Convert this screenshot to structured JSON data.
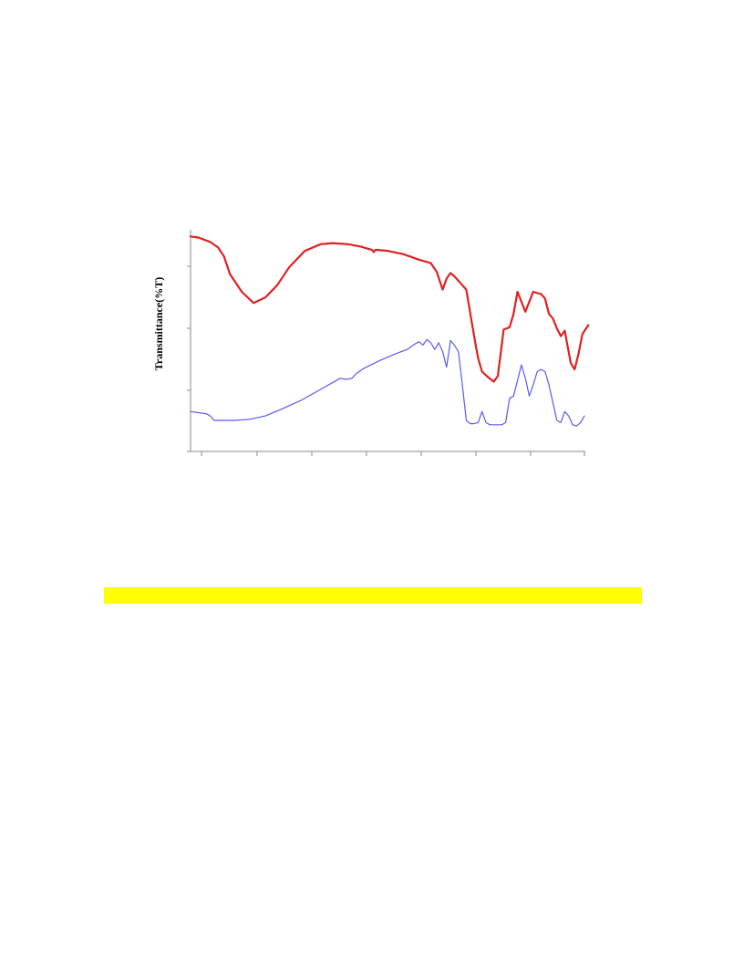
{
  "chart_data": {
    "type": "line",
    "title": "",
    "xlabel": "",
    "ylabel": "Transmittance(%T)",
    "xlim": [
      0,
      100
    ],
    "ylim": [
      0,
      100
    ],
    "grid": false,
    "legend": "none",
    "series": [
      {
        "color": "#e02020",
        "x": [
          0,
          2,
          5,
          7,
          8.5,
          10,
          13,
          16,
          19,
          22,
          25,
          29,
          33,
          36,
          40,
          43,
          46,
          46.5,
          47,
          50,
          54,
          58,
          61,
          62.5,
          64,
          65,
          66,
          67,
          68.5,
          70,
          72,
          73,
          74,
          75.5,
          77,
          78,
          79.5,
          81,
          82,
          83,
          85,
          87,
          89,
          90,
          91,
          92,
          93,
          94,
          95,
          96.5,
          97.5,
          98.5,
          99.5,
          101
        ],
        "y": [
          97,
          96.5,
          94.5,
          92,
          88,
          80,
          72,
          67,
          69.5,
          75,
          83,
          90.5,
          93.5,
          94,
          93.5,
          92.5,
          91,
          90,
          91,
          90.5,
          89,
          86.5,
          85,
          81,
          73,
          78,
          80.5,
          79,
          76,
          73,
          52,
          42,
          36,
          33.5,
          31.5,
          34,
          55,
          56,
          62,
          72,
          63,
          72,
          71,
          69,
          62,
          60,
          55.5,
          52,
          54.5,
          40,
          37,
          44,
          53,
          57
        ]
      },
      {
        "color": "#5a5af0",
        "x": [
          0,
          2,
          4,
          5,
          6,
          8,
          11,
          15,
          19,
          23,
          28,
          33,
          38,
          39.5,
          41,
          42,
          44,
          48,
          52,
          55,
          57,
          58,
          59,
          60,
          61,
          62,
          63,
          64,
          65,
          66,
          67,
          68,
          69,
          70,
          71,
          72,
          73,
          74,
          75,
          76,
          77,
          78,
          79,
          80,
          81,
          82,
          83,
          84,
          85,
          86,
          87,
          88,
          89,
          90,
          91,
          92,
          93,
          94,
          95,
          96,
          97,
          98,
          99,
          100
        ],
        "y": [
          18,
          17.5,
          17,
          16,
          14,
          14,
          14,
          14.5,
          16,
          19,
          23,
          28,
          33,
          32.5,
          33,
          35,
          37.5,
          41,
          44,
          46,
          48.5,
          49.5,
          48,
          50.5,
          49,
          46,
          49,
          45,
          38,
          50,
          48,
          45,
          30,
          14,
          12.5,
          12.5,
          13,
          18,
          13,
          12,
          12,
          12,
          12,
          13,
          24,
          25,
          32,
          39,
          33,
          25,
          30,
          36,
          37,
          36,
          30,
          22,
          14,
          13,
          18,
          16,
          12,
          11.5,
          13,
          16
        ]
      }
    ]
  },
  "page": {
    "highlight_color": "#ffff00"
  }
}
